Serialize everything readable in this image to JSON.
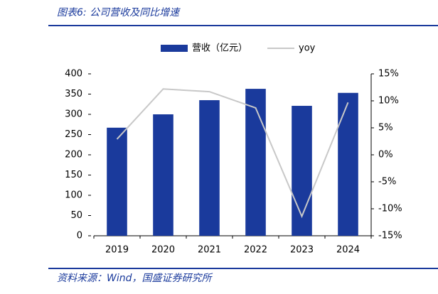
{
  "chart_data": {
    "type": "bar",
    "title": "图表6:  公司营收及同比增速",
    "source": "资料来源：Wind，国盛证券研究所",
    "categories": [
      "2019",
      "2020",
      "2021",
      "2022",
      "2023",
      "2024"
    ],
    "series": [
      {
        "name": "营收（亿元）",
        "type": "bar",
        "color": "#1a3a9c",
        "values": [
          267,
          300,
          335,
          363,
          321,
          353
        ]
      },
      {
        "name": "yoy",
        "type": "line",
        "axis": "y2",
        "color": "#c8c8c8",
        "values": [
          2.9,
          12.2,
          11.7,
          8.7,
          -11.4,
          9.7
        ]
      }
    ],
    "ylim": [
      0,
      400
    ],
    "yticks": [
      0,
      50,
      100,
      150,
      200,
      250,
      300,
      350,
      400
    ],
    "y2lim": [
      -15,
      15
    ],
    "y2ticks": [
      {
        "value": -15,
        "label": "-15%"
      },
      {
        "value": -10,
        "label": "-10%"
      },
      {
        "value": -5,
        "label": "-5%"
      },
      {
        "value": 0,
        "label": "0%"
      },
      {
        "value": 5,
        "label": "5%"
      },
      {
        "value": 10,
        "label": "10%"
      },
      {
        "value": 15,
        "label": "15%"
      }
    ],
    "legend": "top"
  }
}
